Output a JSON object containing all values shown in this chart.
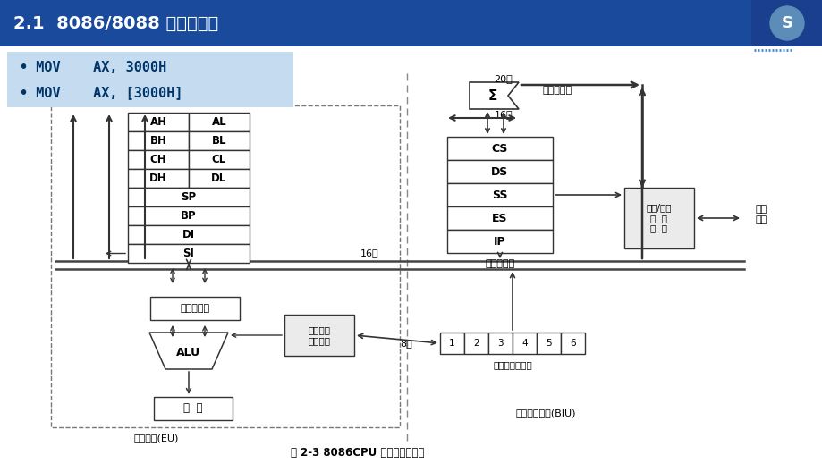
{
  "title": "2.1  8086/8088 的编程结构",
  "bullet1": "• MOV    AX, 3000H",
  "bullet2": "• MOV    AX, [3000H]",
  "title_bg": "#1A4A9B",
  "title_color": "#FFFFFF",
  "bullet_bg": "#C5DCF0",
  "bullet_color": "#003366",
  "slide_bg": "#FFFFFF",
  "fig_caption": "图 2-3 8086CPU 的功能结构框图",
  "reg_left": [
    "AH",
    "BH",
    "CH",
    "DH"
  ],
  "reg_right": [
    "AL",
    "BL",
    "CL",
    "DL"
  ],
  "reg_full": [
    "SP",
    "BP",
    "DI",
    "SI"
  ],
  "seg_regs": [
    "CS",
    "DS",
    "SS",
    "ES",
    "IP"
  ],
  "seg_label": "内部暂存器",
  "label_20bit": "20位",
  "label_adder": "加法地址器",
  "label_16bit_top": "16位",
  "label_16bit_bus": "16位",
  "label_8bit": "8位",
  "label_alu": "ALU",
  "label_reg": "运算寄存器",
  "label_ctrl": "执行部分\n控制电路",
  "label_io": "输入/输出\n控  制\n电  路",
  "label_bus": "外部\n总线",
  "label_eu": "执行部件(EU)",
  "label_biu": "总线接口部件(BIU)",
  "label_queue": "指令队列缓冲器",
  "label_flag": "标  志",
  "queue_cells": [
    "1",
    "2",
    "3",
    "4",
    "5",
    "6"
  ],
  "sigma_label": "Σ",
  "box_color": "#333333",
  "arrow_color": "#333333",
  "dashed_div_color": "#888888",
  "logo_bg": "#1A3F8F",
  "logo_circle": "#5B8DB8"
}
